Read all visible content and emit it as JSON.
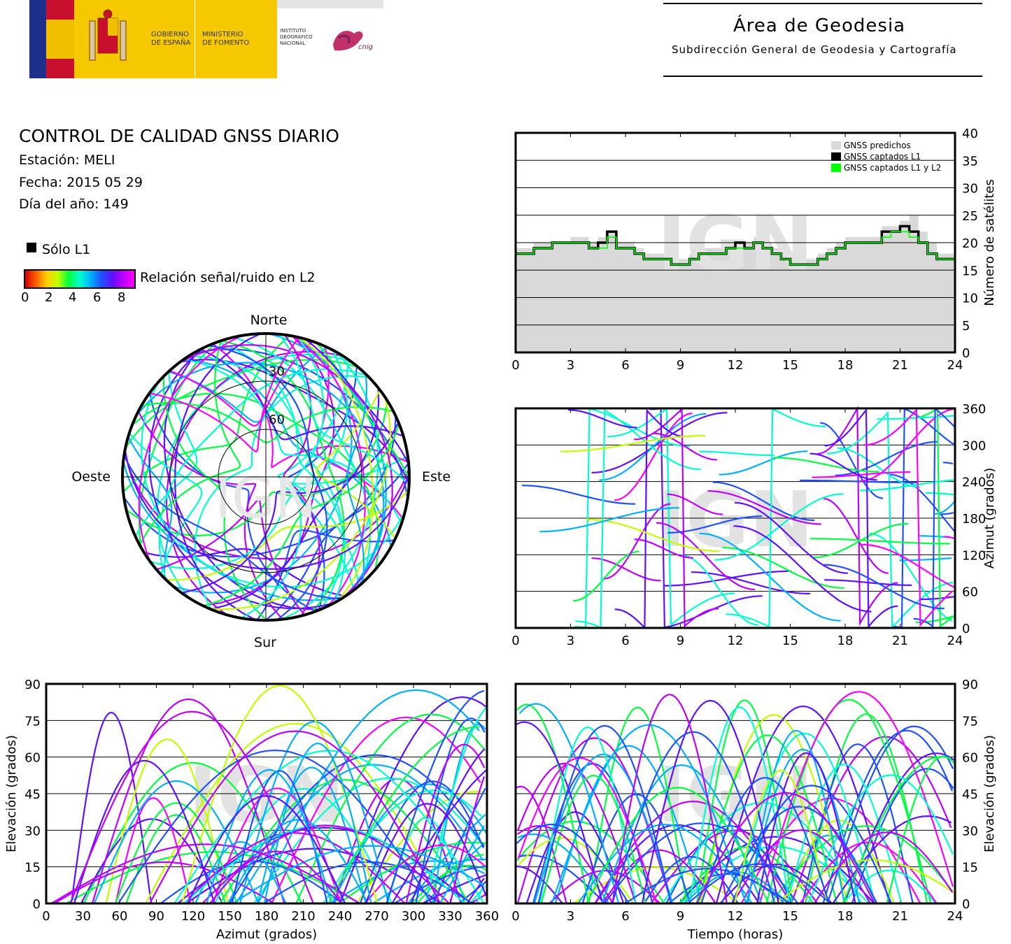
{
  "header": {
    "gov_line1": "GOBIERNO",
    "gov_line2": "DE ESPAÑA",
    "min_line1": "MINISTERIO",
    "min_line2": "DE FOMENTO",
    "ign_line1": "INSTITUTO",
    "ign_line2": "GEOGRÁFICO",
    "ign_line3": "NACIONAL",
    "cnig": "cnig",
    "area_title": "Área de Geodesia",
    "area_subtitle": "Subdirección General de Geodesia y Cartografía"
  },
  "info": {
    "title": "CONTROL DE CALIDAD GNSS DIARIO",
    "station": "Estación: MELI",
    "date": "Fecha: 2015 05 29",
    "doy": "Día del año: 149",
    "legend_l1": "Sólo L1",
    "colorbar_label": "Relación señal/ruido en L2",
    "colorbar_ticks": [
      "0",
      "2",
      "4",
      "6",
      "8"
    ]
  },
  "colors": {
    "predicted": "#d9d9d9",
    "l1": "#000000",
    "l1l2": "#00ff00",
    "snr_scale": [
      "#d00000",
      "#ff6000",
      "#ffd000",
      "#c0ff00",
      "#00ff40",
      "#00ffd0",
      "#00b0ff",
      "#2050ff",
      "#6010ff",
      "#c000ff",
      "#ff00ff"
    ]
  },
  "watermark": "IGN",
  "chart_data": [
    {
      "id": "skyplot",
      "type": "scatter",
      "labels": {
        "north": "Norte",
        "south": "Sur",
        "west": "Oeste",
        "east": "Este"
      },
      "ring_labels": [
        "30",
        "60"
      ],
      "rings_elevation": [
        30,
        60
      ],
      "description_points": "satellite tracks coloured by L2 SNR"
    },
    {
      "id": "satellite-count",
      "type": "area",
      "xlabel": "",
      "ylabel": "Número de satélites",
      "xlim": [
        0,
        24
      ],
      "ylim": [
        0,
        40
      ],
      "xticks": [
        0,
        3,
        6,
        9,
        12,
        15,
        18,
        21,
        24
      ],
      "yticks": [
        0,
        5,
        10,
        15,
        20,
        25,
        30,
        35,
        40
      ],
      "legend": [
        "GNSS predichos",
        "GNSS captados L1",
        "GNSS captados L1 y L2"
      ],
      "legend_position": "top-right",
      "x": [
        0,
        0.5,
        1,
        1.5,
        2,
        2.5,
        3,
        3.5,
        4,
        4.5,
        5,
        5.5,
        6,
        6.5,
        7,
        7.5,
        8,
        8.5,
        9,
        9.5,
        10,
        10.5,
        11,
        11.5,
        12,
        12.5,
        13,
        13.5,
        14,
        14.5,
        15,
        15.5,
        16,
        16.5,
        17,
        17.5,
        18,
        18.5,
        19,
        19.5,
        20,
        20.5,
        21,
        21.5,
        22,
        22.5,
        23,
        23.5,
        24
      ],
      "series": [
        {
          "name": "GNSS predichos",
          "values": [
            19,
            19,
            20,
            20,
            20,
            20,
            21,
            21,
            20,
            21,
            22,
            20,
            20,
            19,
            18,
            18,
            18,
            17,
            17,
            18,
            19,
            19,
            19,
            20,
            20,
            20,
            21,
            20,
            19,
            18,
            17,
            17,
            17,
            18,
            19,
            20,
            21,
            21,
            21,
            21,
            23,
            23,
            24,
            25,
            22,
            20,
            18,
            18,
            18
          ]
        },
        {
          "name": "GNSS captados L1",
          "values": [
            18,
            18,
            19,
            19,
            20,
            20,
            20,
            20,
            19,
            20,
            22,
            19,
            19,
            18,
            17,
            17,
            17,
            16,
            16,
            17,
            18,
            18,
            18,
            19,
            20,
            19,
            20,
            19,
            18,
            17,
            16,
            16,
            16,
            17,
            18,
            19,
            20,
            20,
            20,
            20,
            22,
            22,
            23,
            22,
            20,
            18,
            17,
            17,
            17
          ]
        },
        {
          "name": "GNSS captados L1 y L2",
          "values": [
            18,
            18,
            19,
            19,
            20,
            20,
            20,
            20,
            19,
            19,
            21,
            19,
            19,
            18,
            17,
            17,
            17,
            16,
            16,
            17,
            18,
            18,
            18,
            19,
            19,
            19,
            20,
            19,
            18,
            17,
            16,
            16,
            16,
            17,
            18,
            19,
            20,
            20,
            20,
            20,
            21,
            22,
            22,
            21,
            20,
            18,
            17,
            17,
            17
          ]
        }
      ]
    },
    {
      "id": "azimuth-time",
      "type": "scatter",
      "xlabel": "",
      "ylabel": "Azimut (grados)",
      "xlim": [
        0,
        24
      ],
      "ylim": [
        0,
        360
      ],
      "xticks": [
        0,
        3,
        6,
        9,
        12,
        15,
        18,
        21,
        24
      ],
      "yticks": [
        0,
        60,
        120,
        180,
        240,
        300,
        360
      ]
    },
    {
      "id": "elevation-azimuth",
      "type": "scatter",
      "xlabel": "Azimut (grados)",
      "ylabel": "Elevación (grados)",
      "xlim": [
        0,
        360
      ],
      "ylim": [
        0,
        90
      ],
      "xticks": [
        0,
        30,
        60,
        90,
        120,
        150,
        180,
        210,
        240,
        270,
        300,
        330,
        360
      ],
      "yticks": [
        0,
        15,
        30,
        45,
        60,
        75,
        90
      ]
    },
    {
      "id": "elevation-time",
      "type": "scatter",
      "xlabel": "Tiempo (horas)",
      "ylabel": "Elevación (grados)",
      "xlim": [
        0,
        24
      ],
      "ylim": [
        0,
        90
      ],
      "xticks": [
        0,
        3,
        6,
        9,
        12,
        15,
        18,
        21,
        24
      ],
      "yticks": [
        0,
        15,
        30,
        45,
        60,
        75,
        90
      ]
    }
  ]
}
